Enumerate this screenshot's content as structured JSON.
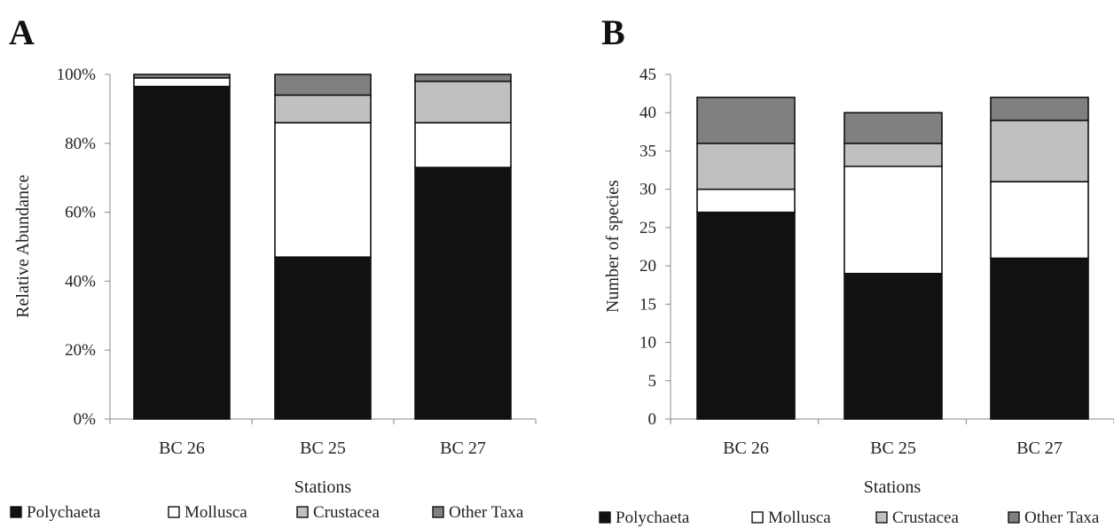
{
  "chart_data": [
    {
      "type": "bar",
      "stacked": true,
      "panel_label": "A",
      "title": "",
      "xlabel": "Stations",
      "ylabel": "Relative Abundance",
      "categories": [
        "BC 26",
        "BC 25",
        "BC 27"
      ],
      "ylim": [
        0,
        100
      ],
      "yticks": [
        0,
        20,
        40,
        60,
        80,
        100
      ],
      "ytick_labels": [
        "0%",
        "20%",
        "40%",
        "60%",
        "80%",
        "100%"
      ],
      "grid": false,
      "legend_position": "bottom",
      "series": [
        {
          "name": "Polychaeta",
          "color": "#111111",
          "values": [
            96.5,
            47,
            73
          ]
        },
        {
          "name": "Mollusca",
          "color": "#ffffff",
          "values": [
            2.5,
            39,
            13
          ]
        },
        {
          "name": "Crustacea",
          "color": "#c0c0c0",
          "values": [
            0,
            8,
            12
          ]
        },
        {
          "name": "Other Taxa",
          "color": "#808080",
          "values": [
            1,
            6,
            2
          ]
        }
      ]
    },
    {
      "type": "bar",
      "stacked": true,
      "panel_label": "B",
      "title": "",
      "xlabel": "Stations",
      "ylabel": "Number of species",
      "categories": [
        "BC 26",
        "BC 25",
        "BC 27"
      ],
      "ylim": [
        0,
        45
      ],
      "yticks": [
        0,
        5,
        10,
        15,
        20,
        25,
        30,
        35,
        40,
        45
      ],
      "ytick_labels": [
        "0",
        "5",
        "10",
        "15",
        "20",
        "25",
        "30",
        "35",
        "40",
        "45"
      ],
      "grid": false,
      "legend_position": "bottom",
      "series": [
        {
          "name": "Polychaeta",
          "color": "#111111",
          "values": [
            27,
            19,
            21
          ]
        },
        {
          "name": "Mollusca",
          "color": "#ffffff",
          "values": [
            3,
            14,
            10
          ]
        },
        {
          "name": "Crustacea",
          "color": "#c0c0c0",
          "values": [
            6,
            3,
            8
          ]
        },
        {
          "name": "Other Taxa",
          "color": "#808080",
          "values": [
            6,
            4,
            3
          ]
        }
      ]
    }
  ]
}
